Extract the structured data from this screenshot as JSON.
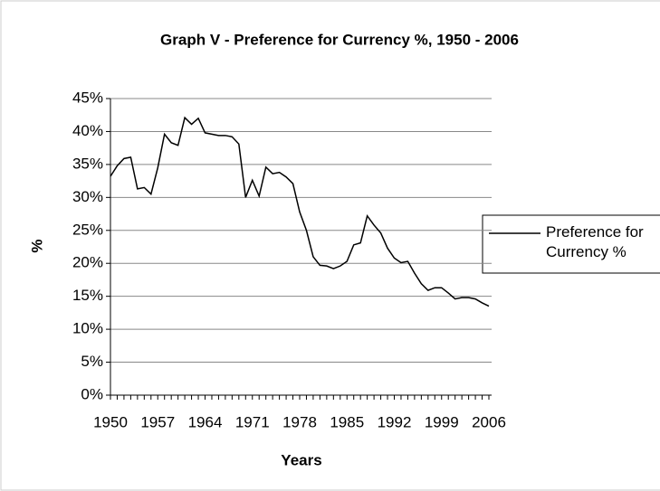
{
  "chart_data": {
    "type": "line",
    "title": "Graph V - Preference for Currency %, 1950 - 2006",
    "xlabel": "Years",
    "ylabel": "%",
    "x": [
      1950,
      1951,
      1952,
      1953,
      1954,
      1955,
      1956,
      1957,
      1958,
      1959,
      1960,
      1961,
      1962,
      1963,
      1964,
      1965,
      1966,
      1967,
      1968,
      1969,
      1970,
      1971,
      1972,
      1973,
      1974,
      1975,
      1976,
      1977,
      1978,
      1979,
      1980,
      1981,
      1982,
      1983,
      1984,
      1985,
      1986,
      1987,
      1988,
      1989,
      1990,
      1991,
      1992,
      1993,
      1994,
      1995,
      1996,
      1997,
      1998,
      1999,
      2000,
      2001,
      2002,
      2003,
      2004,
      2005,
      2006
    ],
    "series": [
      {
        "name": "Preference for Currency %",
        "color": "#000000",
        "values": [
          33.2,
          34.8,
          35.9,
          36.1,
          31.3,
          31.5,
          30.5,
          34.5,
          39.6,
          38.3,
          37.9,
          42.1,
          41.1,
          42.0,
          39.8,
          39.6,
          39.4,
          39.4,
          39.2,
          38.1,
          30.0,
          32.6,
          30.2,
          34.6,
          33.6,
          33.8,
          33.1,
          32.1,
          27.8,
          25.0,
          21.0,
          19.7,
          19.6,
          19.2,
          19.6,
          20.3,
          22.8,
          23.1,
          27.2,
          25.8,
          24.6,
          22.3,
          20.8,
          20.1,
          20.3,
          18.5,
          16.9,
          15.9,
          16.3,
          16.3,
          15.5,
          14.6,
          14.8,
          14.8,
          14.6,
          14.0,
          13.5
        ]
      }
    ],
    "xlim": [
      1950,
      2006
    ],
    "xticks": [
      1950,
      1957,
      1964,
      1971,
      1978,
      1985,
      1992,
      1999,
      2006
    ],
    "ylim": [
      0,
      45
    ],
    "yticks": [
      {
        "value": 0,
        "label": "0%"
      },
      {
        "value": 5,
        "label": "5%"
      },
      {
        "value": 10,
        "label": "10%"
      },
      {
        "value": 15,
        "label": "15%"
      },
      {
        "value": 20,
        "label": "20%"
      },
      {
        "value": 25,
        "label": "25%"
      },
      {
        "value": 30,
        "label": "30%"
      },
      {
        "value": 35,
        "label": "35%"
      },
      {
        "value": 40,
        "label": "40%"
      },
      {
        "value": 45,
        "label": "45%"
      }
    ],
    "grid": true,
    "legend": "right"
  }
}
